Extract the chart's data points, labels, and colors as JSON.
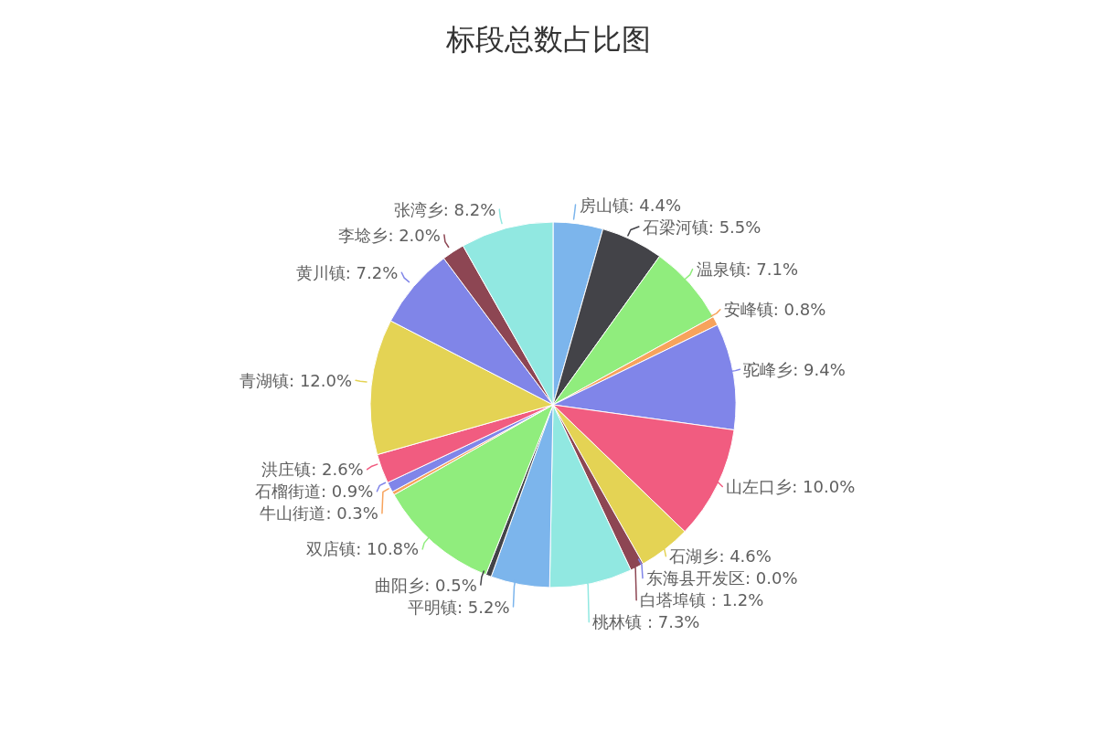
{
  "chart_data": {
    "type": "pie",
    "title": "标段总数占比图",
    "categories": [
      "房山镇",
      "石梁河镇",
      "温泉镇",
      "安峰镇",
      "驼峰乡",
      "山左口乡",
      "石湖乡",
      "东海县开发区",
      "白塔埠镇 ",
      "桃林镇 ",
      "平明镇",
      "曲阳乡",
      "双店镇",
      "牛山街道",
      "石榴街道",
      "洪庄镇",
      "青湖镇",
      "黄川镇",
      "李埝乡",
      "张湾乡"
    ],
    "values": [
      4.4,
      5.5,
      7.1,
      0.8,
      9.4,
      10.0,
      4.6,
      0.0,
      1.2,
      7.3,
      5.2,
      0.5,
      10.8,
      0.3,
      0.9,
      2.6,
      12.0,
      7.2,
      2.0,
      8.2
    ],
    "value_labels": [
      "4.4%",
      "5.5%",
      "7.1%",
      "0.8%",
      "9.4%",
      "10.0%",
      "4.6%",
      "0.0%",
      "1.2%",
      "7.3%",
      "5.2%",
      "0.5%",
      "10.8%",
      "0.3%",
      "0.9%",
      "2.6%",
      "12.0%",
      "7.2%",
      "2.0%",
      "8.2%"
    ],
    "colors": [
      "#7cb5ec",
      "#434348",
      "#90ed7d",
      "#f7a35c",
      "#8085e9",
      "#f15c80",
      "#e4d354",
      "#8085e8",
      "#8d4653",
      "#91e8e1",
      "#7cb5ec",
      "#434348",
      "#90ed7d",
      "#f7a35c",
      "#8085e9",
      "#f15c80",
      "#e4d354",
      "#8085e8",
      "#8d4653",
      "#91e8e1"
    ]
  }
}
